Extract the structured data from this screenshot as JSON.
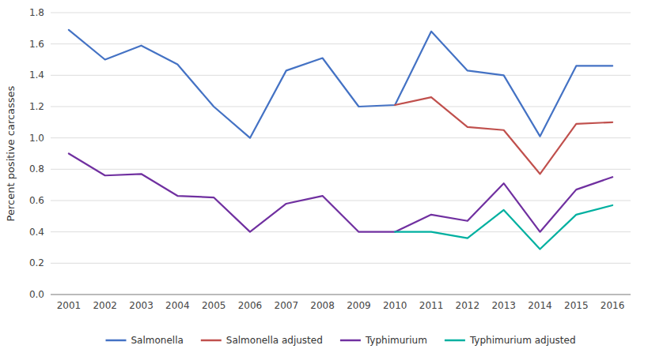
{
  "chart_data": {
    "type": "line",
    "ylabel": "Percent positive carcasses",
    "x": [
      2001,
      2002,
      2003,
      2004,
      2005,
      2006,
      2007,
      2008,
      2009,
      2010,
      2011,
      2012,
      2013,
      2014,
      2015,
      2016
    ],
    "series": [
      {
        "name": "Salmonella",
        "color": "#4472C4",
        "values": [
          1.69,
          1.5,
          1.59,
          1.47,
          1.2,
          1.0,
          1.43,
          1.51,
          1.2,
          1.21,
          1.68,
          1.43,
          1.4,
          1.01,
          1.46,
          1.46
        ]
      },
      {
        "name": "Salmonella adjusted",
        "color": "#C0504D",
        "values": [
          null,
          null,
          null,
          null,
          null,
          null,
          null,
          null,
          null,
          1.21,
          1.26,
          1.07,
          1.05,
          0.77,
          1.09,
          1.1
        ]
      },
      {
        "name": "Typhimurium",
        "color": "#7030A0",
        "values": [
          0.9,
          0.76,
          0.77,
          0.63,
          0.62,
          0.4,
          0.58,
          0.63,
          0.4,
          0.4,
          0.51,
          0.47,
          0.71,
          0.4,
          0.67,
          0.75
        ]
      },
      {
        "name": "Typhimurium adjusted",
        "color": "#00B0A0",
        "values": [
          null,
          null,
          null,
          null,
          null,
          null,
          null,
          null,
          null,
          0.4,
          0.4,
          0.36,
          0.54,
          0.29,
          0.51,
          0.57
        ]
      }
    ],
    "xlim": [
      2000.5,
      2016.5
    ],
    "xticks": [
      2001,
      2002,
      2003,
      2004,
      2005,
      2006,
      2007,
      2008,
      2009,
      2010,
      2011,
      2012,
      2013,
      2014,
      2015,
      2016
    ],
    "ylim": [
      0.0,
      1.8
    ],
    "yticks": [
      {
        "value": 0.0,
        "label": "0.0"
      },
      0.2,
      0.4,
      0.6,
      0.8,
      {
        "value": 1.0,
        "label": "1.0"
      },
      1.2,
      1.4,
      1.6,
      1.8
    ],
    "grid": true,
    "legend": "bottom"
  }
}
